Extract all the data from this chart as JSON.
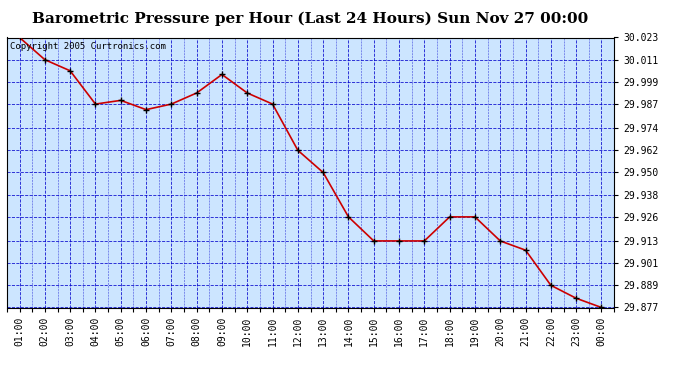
{
  "title": "Barometric Pressure per Hour (Last 24 Hours) Sun Nov 27 00:00",
  "copyright": "Copyright 2005 Curtronics.com",
  "x_labels": [
    "01:00",
    "02:00",
    "03:00",
    "04:00",
    "05:00",
    "06:00",
    "07:00",
    "08:00",
    "09:00",
    "10:00",
    "11:00",
    "12:00",
    "13:00",
    "14:00",
    "15:00",
    "16:00",
    "17:00",
    "18:00",
    "19:00",
    "20:00",
    "21:00",
    "22:00",
    "23:00",
    "00:00"
  ],
  "x_values": [
    1,
    2,
    3,
    4,
    5,
    6,
    7,
    8,
    9,
    10,
    11,
    12,
    13,
    14,
    15,
    16,
    17,
    18,
    19,
    20,
    21,
    22,
    23,
    24
  ],
  "y_values": [
    30.023,
    30.011,
    30.005,
    29.987,
    29.989,
    29.984,
    29.987,
    29.993,
    30.003,
    29.993,
    29.987,
    29.962,
    29.95,
    29.926,
    29.913,
    29.913,
    29.913,
    29.926,
    29.926,
    29.913,
    29.908,
    29.889,
    29.882,
    29.877
  ],
  "ylim_min": 29.877,
  "ylim_max": 30.023,
  "yticks": [
    30.023,
    30.011,
    29.999,
    29.987,
    29.974,
    29.962,
    29.95,
    29.938,
    29.926,
    29.913,
    29.901,
    29.889,
    29.877
  ],
  "line_color": "#cc0000",
  "marker_color": "#000000",
  "bg_color": "#cce5ff",
  "outer_bg_color": "#ffffff",
  "grid_color": "#0000cc",
  "title_fontsize": 11,
  "tick_fontsize": 7,
  "copyright_fontsize": 6.5
}
